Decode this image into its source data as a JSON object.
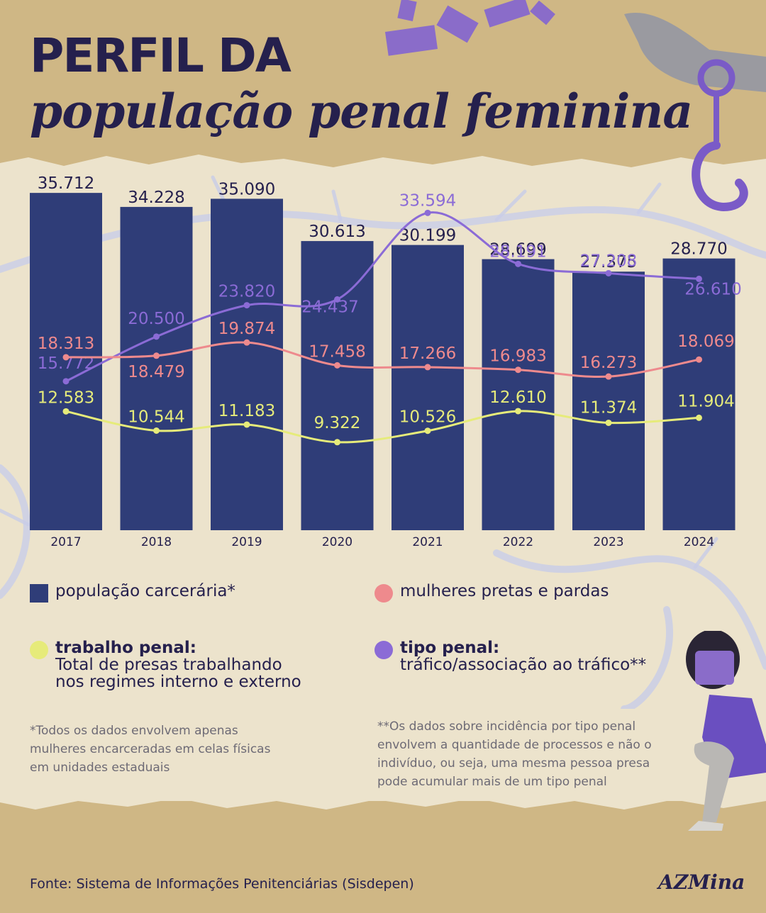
{
  "title": {
    "line1": "PERFIL DA",
    "line2": "população penal feminina"
  },
  "colors": {
    "bar": "#2f3d78",
    "pretas_pardas": "#ee8a8d",
    "trabalho": "#e6eb7a",
    "tipo_penal": "#8b6bd6",
    "text_dark": "#25204d",
    "accent_purple": "#7a5bc7"
  },
  "chart_data": {
    "type": "bar",
    "categories": [
      "2017",
      "2018",
      "2019",
      "2020",
      "2021",
      "2022",
      "2023",
      "2024"
    ],
    "value_labels": {
      "bars": [
        "35.712",
        "34.228",
        "35.090",
        "30.613",
        "30.199",
        "28.699",
        "27.375",
        "28.770"
      ],
      "tipo_penal": [
        "15.772",
        "20.500",
        "23.820",
        "24.437",
        "33.594",
        "28.191",
        "27.208",
        "26.610"
      ],
      "pretas_pardas": [
        "18.313",
        "18.479",
        "19.874",
        "17.458",
        "17.266",
        "16.983",
        "16.273",
        "18.069"
      ],
      "trabalho": [
        "12.583",
        "10.544",
        "11.183",
        "9.322",
        "10.526",
        "12.610",
        "11.374",
        "11.904"
      ]
    },
    "series": [
      {
        "name": "população carcerária*",
        "type": "bar",
        "values": [
          35712,
          34228,
          35090,
          30613,
          30199,
          28699,
          27375,
          28770
        ]
      },
      {
        "name": "tipo penal: tráfico/associação ao tráfico**",
        "type": "line",
        "values": [
          15772,
          20500,
          23820,
          24437,
          33594,
          28191,
          27208,
          26610
        ]
      },
      {
        "name": "mulheres pretas e pardas",
        "type": "line",
        "values": [
          18313,
          18479,
          19874,
          17458,
          17266,
          16983,
          16273,
          18069
        ]
      },
      {
        "name": "trabalho penal: Total de presas trabalhando nos regimes interno e externo",
        "type": "line",
        "values": [
          12583,
          10544,
          11183,
          9322,
          10526,
          12610,
          11374,
          11904
        ]
      }
    ],
    "ylim": [
      0,
      40000
    ],
    "grid": false,
    "legend_position": "bottom"
  },
  "legend": {
    "bars": {
      "label": "população carcerária*"
    },
    "pretas": {
      "label": "mulheres pretas e pardas"
    },
    "trabalho": {
      "label": "trabalho penal:",
      "sub1": "Total de presas trabalhando",
      "sub2": "nos regimes interno e externo"
    },
    "tipo": {
      "label": "tipo penal:",
      "sub1": "tráfico/associação ao tráfico**"
    }
  },
  "footnotes": {
    "left": [
      "*Todos os dados envolvem apenas",
      "mulheres encarceradas em celas físicas",
      "em unidades estaduais"
    ],
    "right": [
      "**Os dados sobre incidência por tipo penal",
      "envolvem a quantidade de processos e não o",
      "indivíduo, ou seja,  uma mesma pessoa presa",
      "pode acumular mais de um tipo penal"
    ]
  },
  "source": "Fonte: Sistema de Informações Penitenciárias (Sisdepen)",
  "brand": "AZMina"
}
